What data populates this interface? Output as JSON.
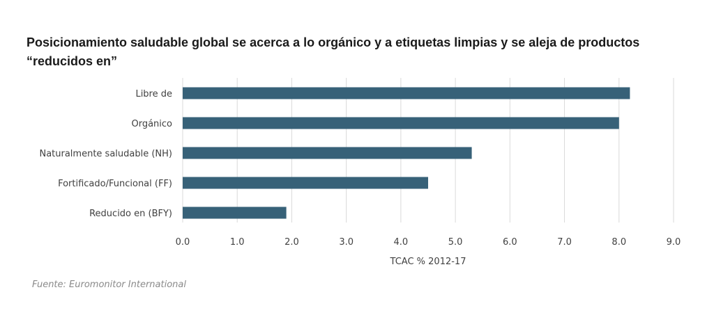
{
  "chart_data": {
    "type": "bar",
    "orientation": "horizontal",
    "title": "Posicionamiento saludable global se acerca a lo orgánico y a etiquetas limpias y se aleja de productos “reducidos en”",
    "categories": [
      "Libre de",
      "Orgánico",
      "Naturalmente saludable (NH)",
      "Fortificado/Funcional (FF)",
      "Reducido en (BFY)"
    ],
    "values": [
      8.2,
      8.0,
      5.3,
      4.5,
      1.9
    ],
    "xlabel": "TCAC % 2012-17",
    "ylabel": "",
    "xlim": [
      0,
      9
    ],
    "xticks": [
      "0.0",
      "1.0",
      "2.0",
      "3.0",
      "4.0",
      "5.0",
      "6.0",
      "7.0",
      "8.0",
      "9.0"
    ],
    "grid": "vertical",
    "bar_color": "#376178",
    "grid_color": "#d9d9d9"
  },
  "source": "Fuente: Euromonitor International"
}
